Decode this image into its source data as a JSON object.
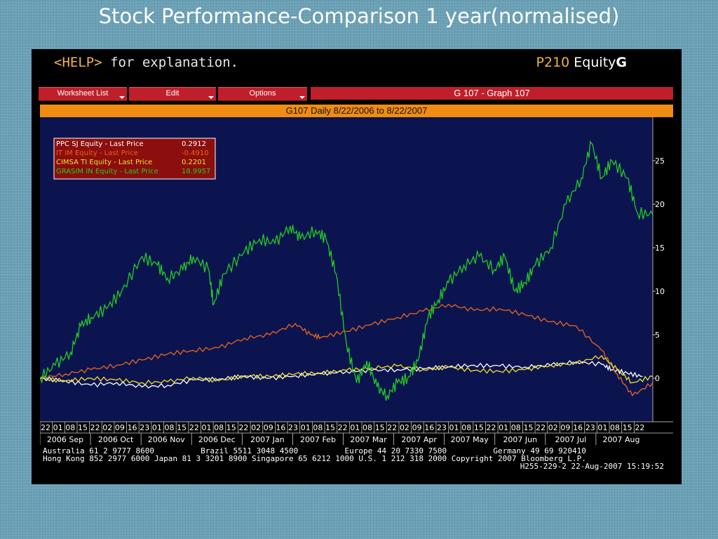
{
  "slide_title": "Stock Performance-Comparison 1 year(normalised)",
  "terminal": {
    "help_key": "<HELP>",
    "help_text": " for explanation.",
    "function_code": "P210",
    "function_name": " Equity",
    "function_suffix": "G",
    "menu": {
      "worksheet_list": "Worksheet List",
      "edit": "Edit",
      "options": "Options"
    },
    "graph_label": "G 107 - Graph 107",
    "subtitle": "G107 Daily 8/22/2006 to 8/22/2007",
    "footer": {
      "line1": "Australia 61 2 9777 8600          Brazil 5511 3048 4500          Europe 44 20 7330 7500          Germany 49 69 920410",
      "line2": "Hong Kong 852 2977 6000 Japan 81 3 3201 8900 Singapore 65 6212 1000 U.S. 1 212 318 2000 Copyright 2007 Bloomberg L.P.",
      "line3": "H255-229-2 22-Aug-2007 15:19:52"
    }
  },
  "colors": {
    "plot_bg": "#0c1450",
    "ppc": "#ffffff",
    "it": "#e8661a",
    "cimsa": "#f2e12a",
    "grasim": "#22cc22",
    "legend_bg": "#8c0e0e"
  },
  "chart_data": {
    "type": "line",
    "title": "G107 Daily 8/22/2006 to 8/22/2007",
    "ylim": [
      -5,
      30
    ],
    "yticks": [
      0,
      5,
      10,
      15,
      20,
      25
    ],
    "x_day_ticks": [
      "22",
      "01",
      "08",
      "15",
      "22",
      "02",
      "09",
      "16",
      "23",
      "01",
      "08",
      "15",
      "22",
      "01",
      "08",
      "15",
      "22",
      "02",
      "09",
      "16",
      "23",
      "01",
      "08",
      "15",
      "22",
      "01",
      "08",
      "15",
      "22",
      "02",
      "09",
      "16",
      "23",
      "01",
      "08",
      "15",
      "22",
      "01",
      "08",
      "15",
      "22",
      "02",
      "09",
      "16",
      "23",
      "01",
      "08",
      "15",
      "22"
    ],
    "months": [
      "2006 Sep",
      "2006 Oct",
      "2006 Nov",
      "2006 Dec",
      "2007 Jan",
      "2007 Feb",
      "2007 Mar",
      "2007 Apr",
      "2007 May",
      "2007 Jun",
      "2007 Jul",
      "2007 Aug"
    ],
    "series": [
      {
        "name": "PPC  SJ Equity - Last Price",
        "legend_value": "0.2912",
        "color": "#ffffff",
        "values": [
          [
            0,
            0
          ],
          [
            0.5,
            -0.3
          ],
          [
            1,
            -0.8
          ],
          [
            1.5,
            -0.5
          ],
          [
            2,
            -1
          ],
          [
            2.5,
            -0.8
          ],
          [
            3,
            -0.2
          ],
          [
            3.5,
            -0.1
          ],
          [
            4,
            0.2
          ],
          [
            4.5,
            0
          ],
          [
            5,
            0.3
          ],
          [
            5.5,
            0.5
          ],
          [
            6,
            0.8
          ],
          [
            6.5,
            0.9
          ],
          [
            7,
            1.0
          ],
          [
            7.5,
            1.1
          ],
          [
            8,
            1.3
          ],
          [
            8.5,
            1.5
          ],
          [
            9,
            1.4
          ],
          [
            9.5,
            1.3
          ],
          [
            10,
            1.5
          ],
          [
            10.5,
            1.9
          ],
          [
            11,
            1.6
          ],
          [
            11.2,
            1.0
          ],
          [
            11.5,
            0.6
          ],
          [
            11.8,
            0.2
          ]
        ]
      },
      {
        "name": "IT  IM Equity - Last Price",
        "legend_value": "-0.4910",
        "color": "#e8661a",
        "values": [
          [
            0,
            0
          ],
          [
            0.5,
            0.5
          ],
          [
            1,
            1
          ],
          [
            1.5,
            1.5
          ],
          [
            2,
            2.1
          ],
          [
            2.5,
            2.8
          ],
          [
            3,
            3.2
          ],
          [
            3.5,
            3.5
          ],
          [
            4,
            4.6
          ],
          [
            4.5,
            5
          ],
          [
            5,
            6.3
          ],
          [
            5.3,
            5.0
          ],
          [
            5.5,
            4.7
          ],
          [
            6,
            5.4
          ],
          [
            6.5,
            6.2
          ],
          [
            7,
            7
          ],
          [
            7.5,
            7.7
          ],
          [
            8,
            8.5
          ],
          [
            8.5,
            7.8
          ],
          [
            9,
            8
          ],
          [
            9.5,
            7.3
          ],
          [
            10,
            6.5
          ],
          [
            10.5,
            6
          ],
          [
            11,
            3.2
          ],
          [
            11.3,
            0.5
          ],
          [
            11.6,
            -2
          ],
          [
            12,
            -0.5
          ]
        ]
      },
      {
        "name": "CIMSA  TI Equity - Last Price",
        "legend_value": "0.2201",
        "color": "#f2e12a",
        "values": [
          [
            0,
            0
          ],
          [
            0.5,
            -0.3
          ],
          [
            1,
            0
          ],
          [
            1.5,
            -0.2
          ],
          [
            2,
            -0.5
          ],
          [
            2.5,
            -0.4
          ],
          [
            3,
            0.1
          ],
          [
            3.5,
            -0.3
          ],
          [
            4,
            0.3
          ],
          [
            4.5,
            0.2
          ],
          [
            5,
            0.5
          ],
          [
            5.5,
            0.6
          ],
          [
            6,
            0.9
          ],
          [
            6.5,
            1.2
          ],
          [
            7,
            1.4
          ],
          [
            7.5,
            1.0
          ],
          [
            8,
            1.3
          ],
          [
            8.5,
            0.9
          ],
          [
            9,
            0.8
          ],
          [
            9.5,
            1.0
          ],
          [
            10,
            1.5
          ],
          [
            10.5,
            1.7
          ],
          [
            11,
            2.6
          ],
          [
            11.3,
            1.0
          ],
          [
            11.6,
            -0.5
          ],
          [
            12,
            0.2
          ]
        ]
      },
      {
        "name": "GRASIM  IN Equity - Last Price",
        "legend_value": "18.9957",
        "color": "#22cc22",
        "values": [
          [
            0,
            0
          ],
          [
            0.3,
            1.5
          ],
          [
            0.6,
            3
          ],
          [
            0.8,
            6
          ],
          [
            1,
            7
          ],
          [
            1.3,
            8
          ],
          [
            1.6,
            10
          ],
          [
            2,
            14
          ],
          [
            2.3,
            13
          ],
          [
            2.5,
            11.5
          ],
          [
            2.8,
            12.5
          ],
          [
            3,
            14
          ],
          [
            3.3,
            12.5
          ],
          [
            3.4,
            8.5
          ],
          [
            3.6,
            12
          ],
          [
            4,
            14.5
          ],
          [
            4.3,
            16
          ],
          [
            4.6,
            15.5
          ],
          [
            4.9,
            17.5
          ],
          [
            5.1,
            16
          ],
          [
            5.4,
            17
          ],
          [
            5.6,
            16
          ],
          [
            5.8,
            12
          ],
          [
            6,
            4
          ],
          [
            6.2,
            -0.5
          ],
          [
            6.4,
            2
          ],
          [
            6.6,
            -1
          ],
          [
            6.8,
            -2
          ],
          [
            7,
            -0.5
          ],
          [
            7.2,
            0
          ],
          [
            7.4,
            2
          ],
          [
            7.6,
            7
          ],
          [
            7.8,
            9
          ],
          [
            8,
            11
          ],
          [
            8.3,
            13
          ],
          [
            8.6,
            14
          ],
          [
            8.9,
            12.5
          ],
          [
            9.1,
            14
          ],
          [
            9.3,
            10
          ],
          [
            9.5,
            11
          ],
          [
            9.7,
            13
          ],
          [
            10,
            15
          ],
          [
            10.3,
            20
          ],
          [
            10.6,
            23
          ],
          [
            10.8,
            27
          ],
          [
            11,
            23
          ],
          [
            11.2,
            25
          ],
          [
            11.5,
            23
          ],
          [
            11.7,
            19
          ],
          [
            12,
            18.8
          ]
        ]
      }
    ]
  }
}
